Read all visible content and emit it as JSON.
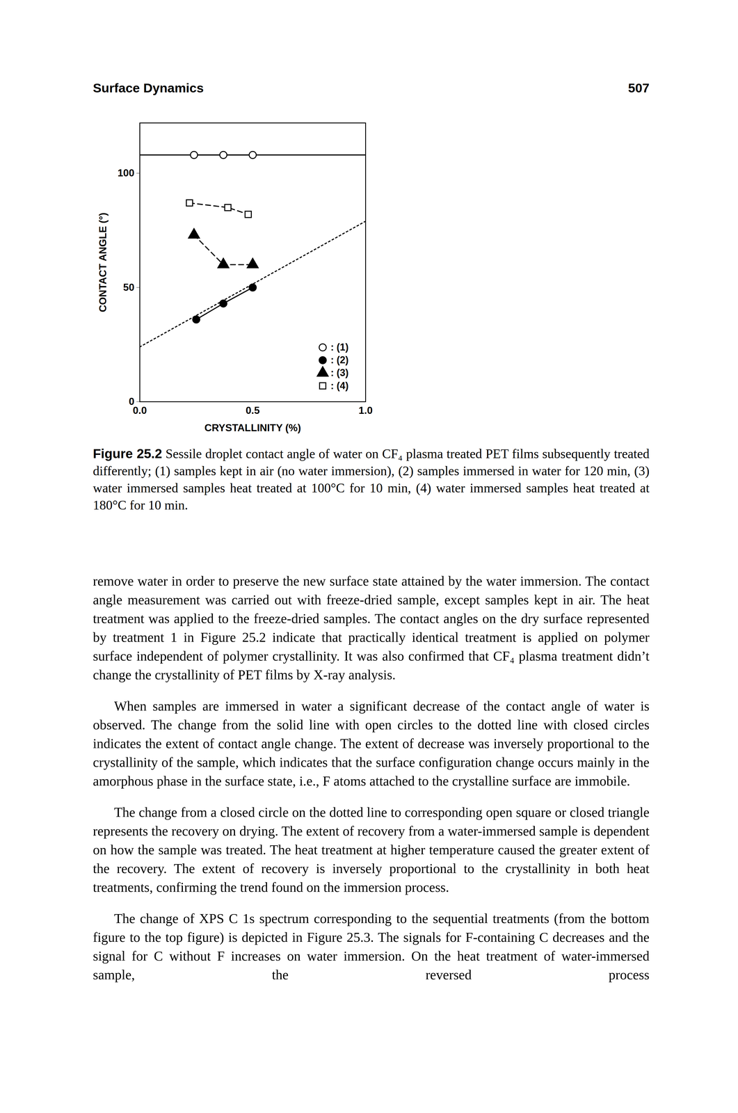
{
  "header": {
    "title": "Surface Dynamics",
    "page_number": "507"
  },
  "chart_data": {
    "type": "scatter",
    "x_label": "CRYSTALLINITY (%)",
    "y_label": "CONTACT ANGLE (°)",
    "xlim": [
      0,
      1
    ],
    "ylim": [
      0,
      122
    ],
    "xticks": [
      {
        "value": 0,
        "label": "0.0"
      },
      {
        "value": 0.5,
        "label": "0.5"
      },
      {
        "value": 1,
        "label": "1.0"
      }
    ],
    "yticks": [
      0,
      50,
      100
    ],
    "grid": false,
    "legend": "lower right",
    "series": [
      {
        "name": ": (1)",
        "color": "#000000",
        "marker": "open_circle",
        "line_style": "solid",
        "x": [
          0.24,
          0.37,
          0.5
        ],
        "values": [
          108,
          108,
          108
        ],
        "fit": {
          "x": [
            0,
            1
          ],
          "values": [
            108,
            108
          ],
          "line_style": "solid"
        }
      },
      {
        "name": ": (2)",
        "color": "#000000",
        "marker": "circle",
        "line_style": "solid",
        "x": [
          0.25,
          0.37,
          0.5
        ],
        "values": [
          36,
          43,
          50
        ],
        "fit": {
          "x": [
            0,
            1
          ],
          "values": [
            24,
            79
          ],
          "line_style": "dotted"
        }
      },
      {
        "name": ": (3)",
        "color": "#000000",
        "marker": "triangle",
        "line_style": "dashed",
        "x": [
          0.24,
          0.37,
          0.5
        ],
        "values": [
          73,
          60,
          60
        ]
      },
      {
        "name": ": (4)",
        "color": "#000000",
        "marker": "open_square",
        "line_style": "dashed",
        "x": [
          0.22,
          0.39,
          0.48
        ],
        "values": [
          87,
          85,
          82
        ]
      }
    ]
  },
  "caption": {
    "label": "Figure 25.2",
    "text": "Sessile droplet contact angle of water on CF₄ plasma treated PET films subsequently treated differently; (1) samples kept in air (no water immersion), (2) samples immersed in water for 120 min, (3) water immersed samples heat treated at 100°C for 10 min, (4) water immersed samples heat treated at 180°C for 10 min."
  },
  "paragraphs": [
    "remove water in order to preserve the new surface state attained by the water immersion. The contact angle measurement was carried out with freeze-dried sample, except samples kept in air. The heat treatment was applied to the freeze-dried samples. The contact angles on the dry surface represented by treatment 1 in Figure 25.2 indicate that practically identical treatment is applied on polymer surface independent of polymer crystallinity. It was also confirmed that CF₄ plasma treatment didn’t change the crystallinity of PET films by X-ray analysis.",
    "When samples are immersed in water a significant decrease of the contact angle of water is observed. The change from the solid line with open circles to the dotted line with closed circles indicates the extent of contact angle change. The extent of decrease was inversely proportional to the crystallinity of the sample, which indicates that the surface configuration change occurs mainly in the amorphous phase in the surface state, i.e., F atoms attached to the crystalline surface are immobile.",
    "The change from a closed circle on the dotted line to corresponding open square or closed triangle represents the recovery on drying. The extent of recovery from a water-immersed sample is dependent on how the sample was treated. The heat treatment at higher temperature caused the greater extent of the recovery. The extent of recovery is inversely proportional to the crystallinity in both heat treatments, confirming the trend found on the immersion process.",
    "The change of XPS C 1s spectrum corresponding to the sequential treatments (from the bottom figure to the top figure) is depicted in Figure 25.3. The signals for F-containing C decreases and the signal for C without F increases on water immersion. On the heat treatment of water-immersed sample, the reversed process"
  ]
}
